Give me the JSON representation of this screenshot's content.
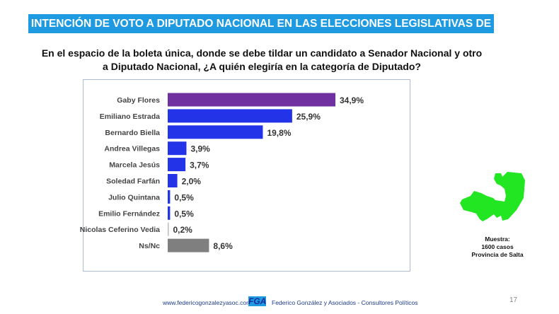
{
  "title": "INTENCIÓN DE VOTO A DIPUTADO NACIONAL EN LAS ELECCIONES LEGISLATIVAS DE OCTUBRE",
  "question_line1": "En el espacio de la boleta única, donde se debe tildar un candidato a Senador Nacional y otro",
  "question_line2": "a Diputado Nacional, ¿A quién elegiría en la categoría de Diputado?",
  "chart_data": {
    "type": "bar",
    "orientation": "horizontal",
    "categories": [
      "Gaby Flores",
      "Emiliano Estrada",
      "Bernardo Biella",
      "Andrea Villegas",
      "Marcela Jesús",
      "Soledad Farfán",
      "Julio Quintana",
      "Emilio Fernández",
      "Nicolas Ceferino Vedia",
      "Ns/Nc"
    ],
    "values": [
      34.9,
      25.9,
      19.8,
      3.9,
      3.7,
      2.0,
      0.5,
      0.5,
      0.2,
      8.6
    ],
    "labels": [
      "34,9%",
      "25,9%",
      "19,8%",
      "3,9%",
      "3,7%",
      "2,0%",
      "0,5%",
      "0,5%",
      "0,2%",
      "8,6%"
    ],
    "colors": [
      "#7030a0",
      "#2233e8",
      "#2233e8",
      "#2233e8",
      "#2233e8",
      "#2233e8",
      "#2233e8",
      "#2233e8",
      "#bbbbbb",
      "#7f7f7f"
    ],
    "grid": false
  },
  "map_color": "#22e622",
  "sample": {
    "line1": "Muestra:",
    "line2": "1600 casos",
    "line3": "Provincia de Salta"
  },
  "footer": {
    "url": "www.federicogonzalezyasoc.com",
    "logo": "FGA",
    "company": "Federico González y Asociados - Consultores Políticos",
    "page": "17"
  }
}
